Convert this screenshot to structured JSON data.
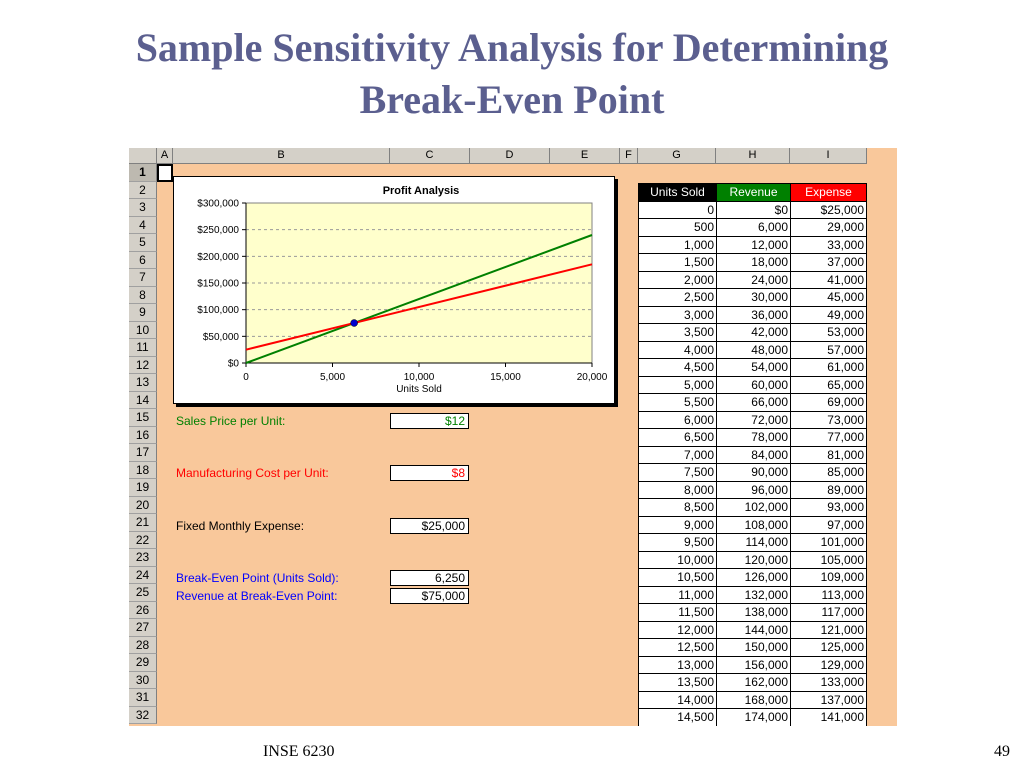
{
  "slide": {
    "title_line1": "Sample Sensitivity Analysis for Determining",
    "title_line2": "Break-Even Point",
    "footer_left": "INSE 6230",
    "page_number": "49"
  },
  "spreadsheet": {
    "columns": [
      "A",
      "B",
      "C",
      "D",
      "E",
      "F",
      "G",
      "H",
      "I"
    ],
    "rows": [
      "1",
      "2",
      "3",
      "4",
      "5",
      "6",
      "7",
      "8",
      "9",
      "10",
      "11",
      "12",
      "13",
      "14",
      "15",
      "16",
      "17",
      "18",
      "19",
      "20",
      "21",
      "22",
      "23",
      "24",
      "25",
      "26",
      "27",
      "28",
      "29",
      "30",
      "31",
      "32"
    ],
    "inputs": {
      "sales_price_label": "Sales Price per Unit:",
      "sales_price_value": "$12",
      "mfg_cost_label": "Manufacturing Cost per Unit:",
      "mfg_cost_value": "$8",
      "fixed_expense_label": "Fixed Monthly Expense:",
      "fixed_expense_value": "$25,000",
      "breakeven_units_label": "Break-Even Point (Units Sold):",
      "breakeven_units_value": "6,250",
      "breakeven_revenue_label": "Revenue at Break-Even Point:",
      "breakeven_revenue_value": "$75,000"
    },
    "colors": {
      "green_text": "#008000",
      "red_text": "#ff0000",
      "blue_text": "#0000ff",
      "sheet_bg": "#f9c89b",
      "header_units_bg": "#000000",
      "header_revenue_bg": "#008000",
      "header_expense_bg": "#ff0000"
    },
    "table": {
      "headers": [
        "Units Sold",
        "Revenue",
        "Expense"
      ],
      "rows": [
        [
          "0",
          "$0",
          "$25,000"
        ],
        [
          "500",
          "6,000",
          "29,000"
        ],
        [
          "1,000",
          "12,000",
          "33,000"
        ],
        [
          "1,500",
          "18,000",
          "37,000"
        ],
        [
          "2,000",
          "24,000",
          "41,000"
        ],
        [
          "2,500",
          "30,000",
          "45,000"
        ],
        [
          "3,000",
          "36,000",
          "49,000"
        ],
        [
          "3,500",
          "42,000",
          "53,000"
        ],
        [
          "4,000",
          "48,000",
          "57,000"
        ],
        [
          "4,500",
          "54,000",
          "61,000"
        ],
        [
          "5,000",
          "60,000",
          "65,000"
        ],
        [
          "5,500",
          "66,000",
          "69,000"
        ],
        [
          "6,000",
          "72,000",
          "73,000"
        ],
        [
          "6,500",
          "78,000",
          "77,000"
        ],
        [
          "7,000",
          "84,000",
          "81,000"
        ],
        [
          "7,500",
          "90,000",
          "85,000"
        ],
        [
          "8,000",
          "96,000",
          "89,000"
        ],
        [
          "8,500",
          "102,000",
          "93,000"
        ],
        [
          "9,000",
          "108,000",
          "97,000"
        ],
        [
          "9,500",
          "114,000",
          "101,000"
        ],
        [
          "10,000",
          "120,000",
          "105,000"
        ],
        [
          "10,500",
          "126,000",
          "109,000"
        ],
        [
          "11,000",
          "132,000",
          "113,000"
        ],
        [
          "11,500",
          "138,000",
          "117,000"
        ],
        [
          "12,000",
          "144,000",
          "121,000"
        ],
        [
          "12,500",
          "150,000",
          "125,000"
        ],
        [
          "13,000",
          "156,000",
          "129,000"
        ],
        [
          "13,500",
          "162,000",
          "133,000"
        ],
        [
          "14,000",
          "168,000",
          "137,000"
        ],
        [
          "14,500",
          "174,000",
          "141,000"
        ]
      ]
    }
  },
  "chart_data": {
    "type": "line",
    "title": "Profit Analysis",
    "xlabel": "Units Sold",
    "ylabel": "",
    "xlim": [
      0,
      20000
    ],
    "ylim": [
      0,
      300000
    ],
    "x_ticks": [
      "0",
      "5,000",
      "10,000",
      "15,000",
      "20,000"
    ],
    "y_ticks": [
      "$0",
      "$50,000",
      "$100,000",
      "$150,000",
      "$200,000",
      "$250,000",
      "$300,000"
    ],
    "grid": "horizontal dashed",
    "plot_background": "#ffffcc",
    "series": [
      {
        "color": "#008000",
        "x": [
          0,
          20000
        ],
        "y": [
          0,
          240000
        ]
      },
      {
        "color": "#ff0000",
        "x": [
          0,
          20000
        ],
        "y": [
          25000,
          185000
        ]
      }
    ],
    "marker": {
      "x": 6250,
      "y": 75000,
      "color": "#0000cc"
    }
  }
}
